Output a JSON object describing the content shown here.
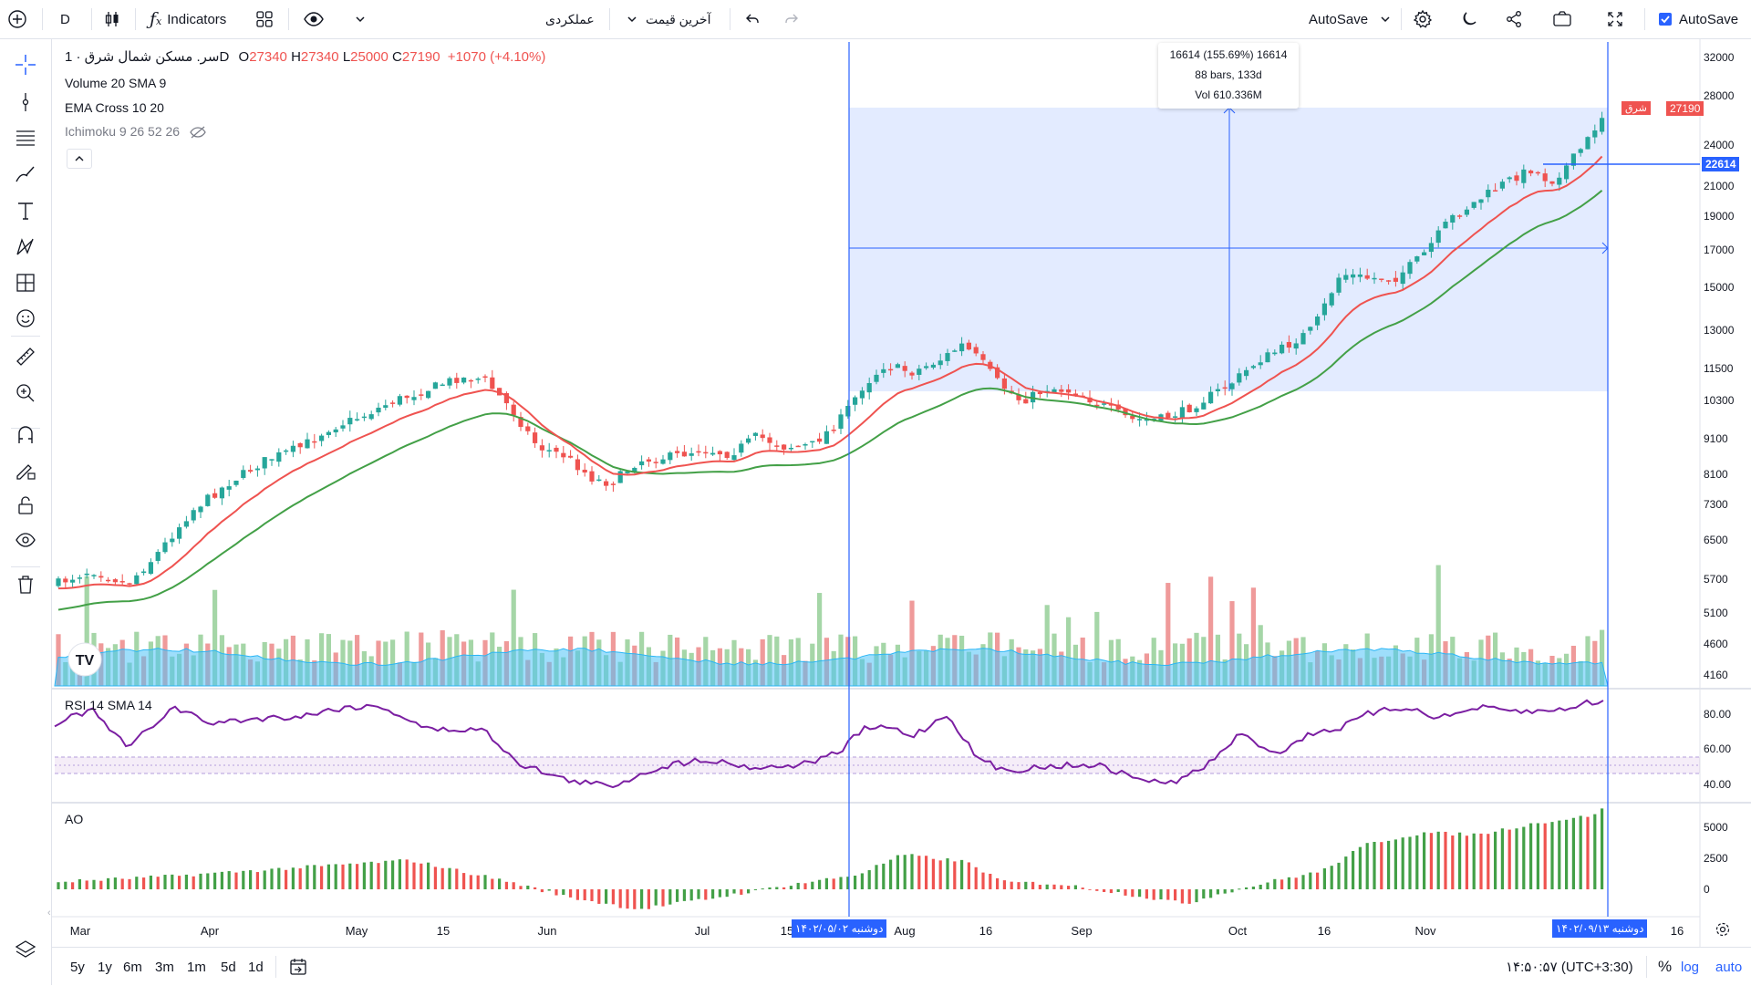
{
  "topbar": {
    "interval": "D",
    "indicators_label": "Indicators",
    "mode_label": "عملکردی",
    "price_type_label": "آخرین قیمت",
    "autosave_label": "AutoSave",
    "autosave_check_label": "AutoSave"
  },
  "legend": {
    "symbol_line": "سر. مسکن شمال شرق · 1D",
    "o_label": "O",
    "o_value": "27340",
    "h_label": "H",
    "h_value": "27340",
    "l_label": "L",
    "l_value": "25000",
    "c_label": "C",
    "c_value": "27190",
    "change": "+1070 (+4.10%)",
    "volume": "Volume 20 SMA 9",
    "ema": "EMA Cross 10 20",
    "ichimoku": "Ichimoku 9 26 52 26"
  },
  "measure": {
    "line1": "16614 (155.69%) 16614",
    "line2": "88 bars, 133d",
    "line3": "Vol 610.336M"
  },
  "price_axis": [
    "32000",
    "28000",
    "24000",
    "21000",
    "19000",
    "17000",
    "15000",
    "13000",
    "11500",
    "10300",
    "9100",
    "8100",
    "7300",
    "6500",
    "5700",
    "5100",
    "4600",
    "4160"
  ],
  "price_badges": {
    "last_label": "شرق",
    "last_value": "27190",
    "cross_value": "22614"
  },
  "rsi": {
    "label": "RSI 14 SMA 14",
    "axis": [
      "80.00",
      "60.00",
      "40.00"
    ]
  },
  "ao": {
    "label": "AO",
    "axis": [
      "5000",
      "2500",
      "0"
    ]
  },
  "time_axis": [
    "Mar",
    "Apr",
    "May",
    "15",
    "Jun",
    "Jul",
    "15",
    "Aug",
    "16",
    "Sep",
    "Oct",
    "16",
    "Nov",
    "16"
  ],
  "date_badges": {
    "start": "دوشنبه ۱۴۰۲/۰۵/۰۲",
    "end": "دوشنبه ۱۴۰۲/۰۹/۱۳"
  },
  "bottombar": {
    "ranges": [
      "5y",
      "1y",
      "6m",
      "3m",
      "1m",
      "5d",
      "1d"
    ],
    "time": "۱۴:۵۰:۵۷ (UTC+3:30)",
    "percent": "%",
    "log": "log",
    "auto": "auto"
  },
  "colors": {
    "up": "#26a69a",
    "down": "#ef5350",
    "accent": "#2962ff",
    "ema_fast": "#ef5350",
    "ema_slow": "#43a047",
    "rsi": "#7b1fa2"
  }
}
